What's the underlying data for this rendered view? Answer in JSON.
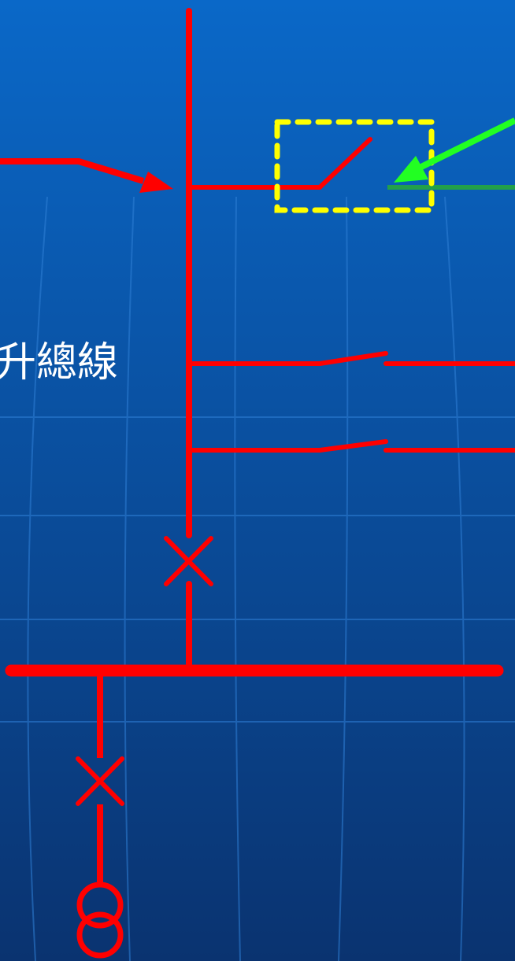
{
  "diagram": {
    "label": "升總線",
    "colors": {
      "background_top": "#0a68c8",
      "background_bottom": "#0a3370",
      "grid": "#2f7fd6",
      "line": "#ff0000",
      "highlight_box": "#ffff00",
      "pointer_arrow": "#22ff22",
      "feed_line": "#22a04a",
      "label": "#ffffff"
    },
    "icons": {
      "breaker_upper": "cross-x-breaker-icon",
      "breaker_lower": "cross-x-breaker-icon",
      "transformer": "double-circle-transformer-icon",
      "switch_top": "open-disconnect-switch-icon",
      "switch_middle": "open-disconnect-switch-icon",
      "switch_bottom": "open-disconnect-switch-icon"
    }
  }
}
